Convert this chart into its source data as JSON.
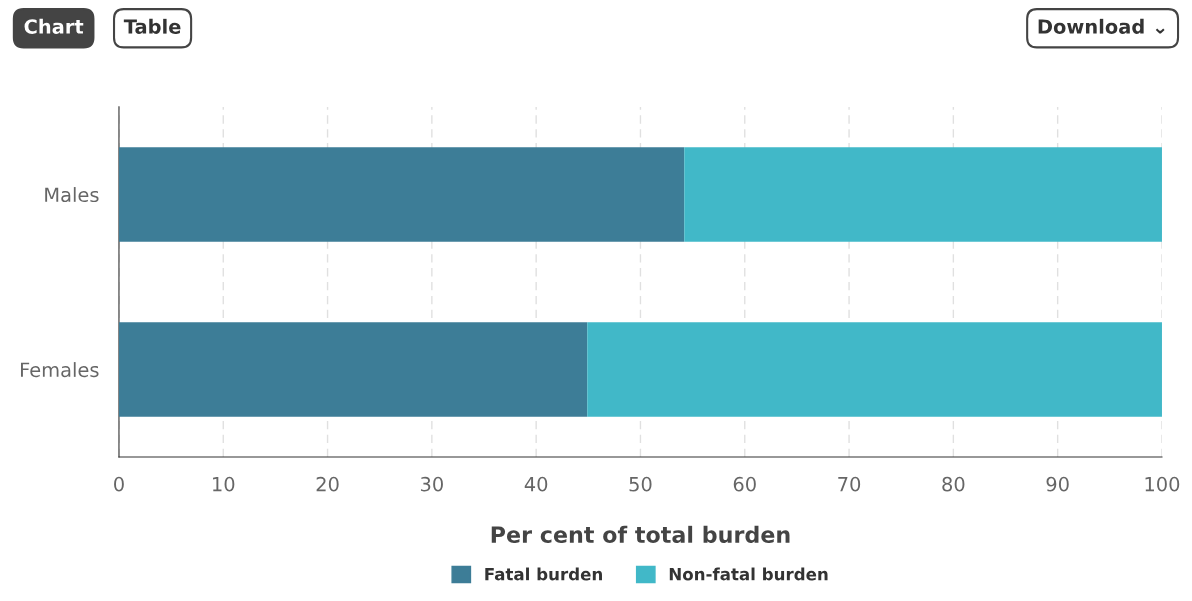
{
  "chart_data": {
    "type": "bar",
    "orientation": "horizontal",
    "stacked": true,
    "categories": [
      "Males",
      "Females"
    ],
    "series": [
      {
        "name": "Fatal burden",
        "color": "#3d7d97",
        "values": [
          54.2,
          44.9
        ]
      },
      {
        "name": "Non-fatal burden",
        "color": "#41b8c8",
        "values": [
          45.8,
          55.1
        ]
      }
    ],
    "xlabel": "Per cent of total burden",
    "xlim": [
      0,
      100
    ],
    "xticks": [
      0,
      10,
      20,
      30,
      40,
      50,
      60,
      70,
      80,
      90,
      100
    ],
    "grid": "x",
    "legend": "bottom",
    "annotations": [
      "Chart",
      "Table",
      "Download ⌄"
    ]
  }
}
